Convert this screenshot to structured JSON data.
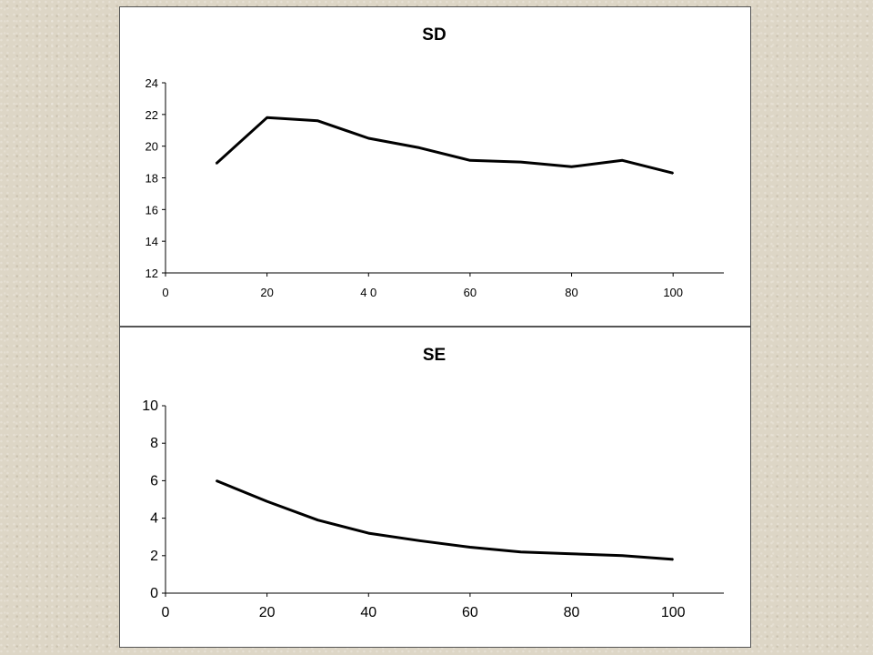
{
  "chart_data": [
    {
      "type": "line",
      "title": "SD",
      "xlabel": "",
      "ylabel": "",
      "xlim": [
        0,
        110
      ],
      "ylim": [
        12,
        24
      ],
      "x_ticks": [
        "0",
        "20",
        "4 0",
        "60",
        "80",
        "100"
      ],
      "y_ticks": [
        "12",
        "14",
        "16",
        "18",
        "20",
        "22",
        "24"
      ],
      "grid": false,
      "legend": "none",
      "series": [
        {
          "x": [
            10,
            20,
            30,
            40,
            50,
            60,
            70,
            80,
            90,
            100
          ],
          "values": [
            18.9,
            21.8,
            21.6,
            20.5,
            19.9,
            19.1,
            19.0,
            18.7,
            19.1,
            18.3
          ]
        }
      ]
    },
    {
      "type": "line",
      "title": "SE",
      "xlabel": "",
      "ylabel": "",
      "xlim": [
        0,
        110
      ],
      "ylim": [
        0,
        10
      ],
      "x_ticks": [
        "0",
        "20",
        "40",
        "60",
        "80",
        "100"
      ],
      "y_ticks": [
        "0",
        "2",
        "4",
        "6",
        "8",
        "10"
      ],
      "grid": false,
      "legend": "none",
      "series": [
        {
          "x": [
            10,
            20,
            30,
            40,
            50,
            60,
            70,
            80,
            90,
            100
          ],
          "values": [
            6.0,
            4.9,
            3.9,
            3.2,
            2.8,
            2.45,
            2.2,
            2.1,
            2.0,
            1.8
          ]
        }
      ]
    }
  ]
}
